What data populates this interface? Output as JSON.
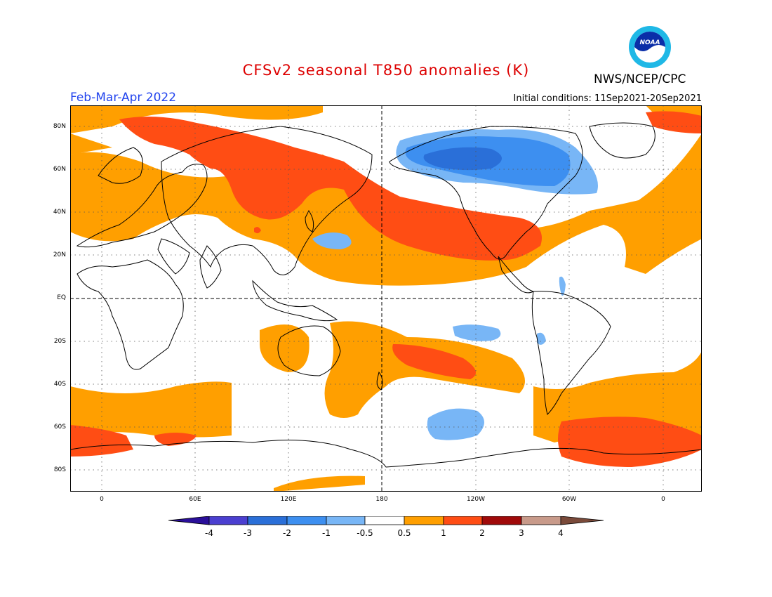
{
  "header": {
    "title": "CFSv2 seasonal T850 anomalies (K)",
    "agency": "NWS/NCEP/CPC",
    "period": "Feb-Mar-Apr 2022",
    "initial_conditions": "Initial conditions: 11Sep2021-20Sep2021",
    "logo_text": "NOAA"
  },
  "colors": {
    "title": "#dd0000",
    "period": "#2244ee",
    "neg4": "#2a0f9a",
    "neg3": "#4b3fd0",
    "neg2": "#2a6fd8",
    "neg1": "#3d8ff0",
    "neg05": "#78b6f6",
    "neutral": "#ffffff",
    "pos05": "#ff9f00",
    "pos1": "#ff4d14",
    "pos2": "#a00a0a",
    "pos3": "#c89a8a",
    "pos4": "#7a4a3a"
  },
  "map": {
    "latitude_labels": [
      "80N",
      "60N",
      "40N",
      "20N",
      "EQ",
      "20S",
      "40S",
      "60S",
      "80S"
    ],
    "longitude_labels": [
      "0",
      "60E",
      "120E",
      "180",
      "120W",
      "60W",
      "0"
    ]
  },
  "colorbar": {
    "labels": [
      "-4",
      "-3",
      "-2",
      "-1",
      "-0.5",
      "0.5",
      "1",
      "2",
      "3",
      "4"
    ]
  }
}
